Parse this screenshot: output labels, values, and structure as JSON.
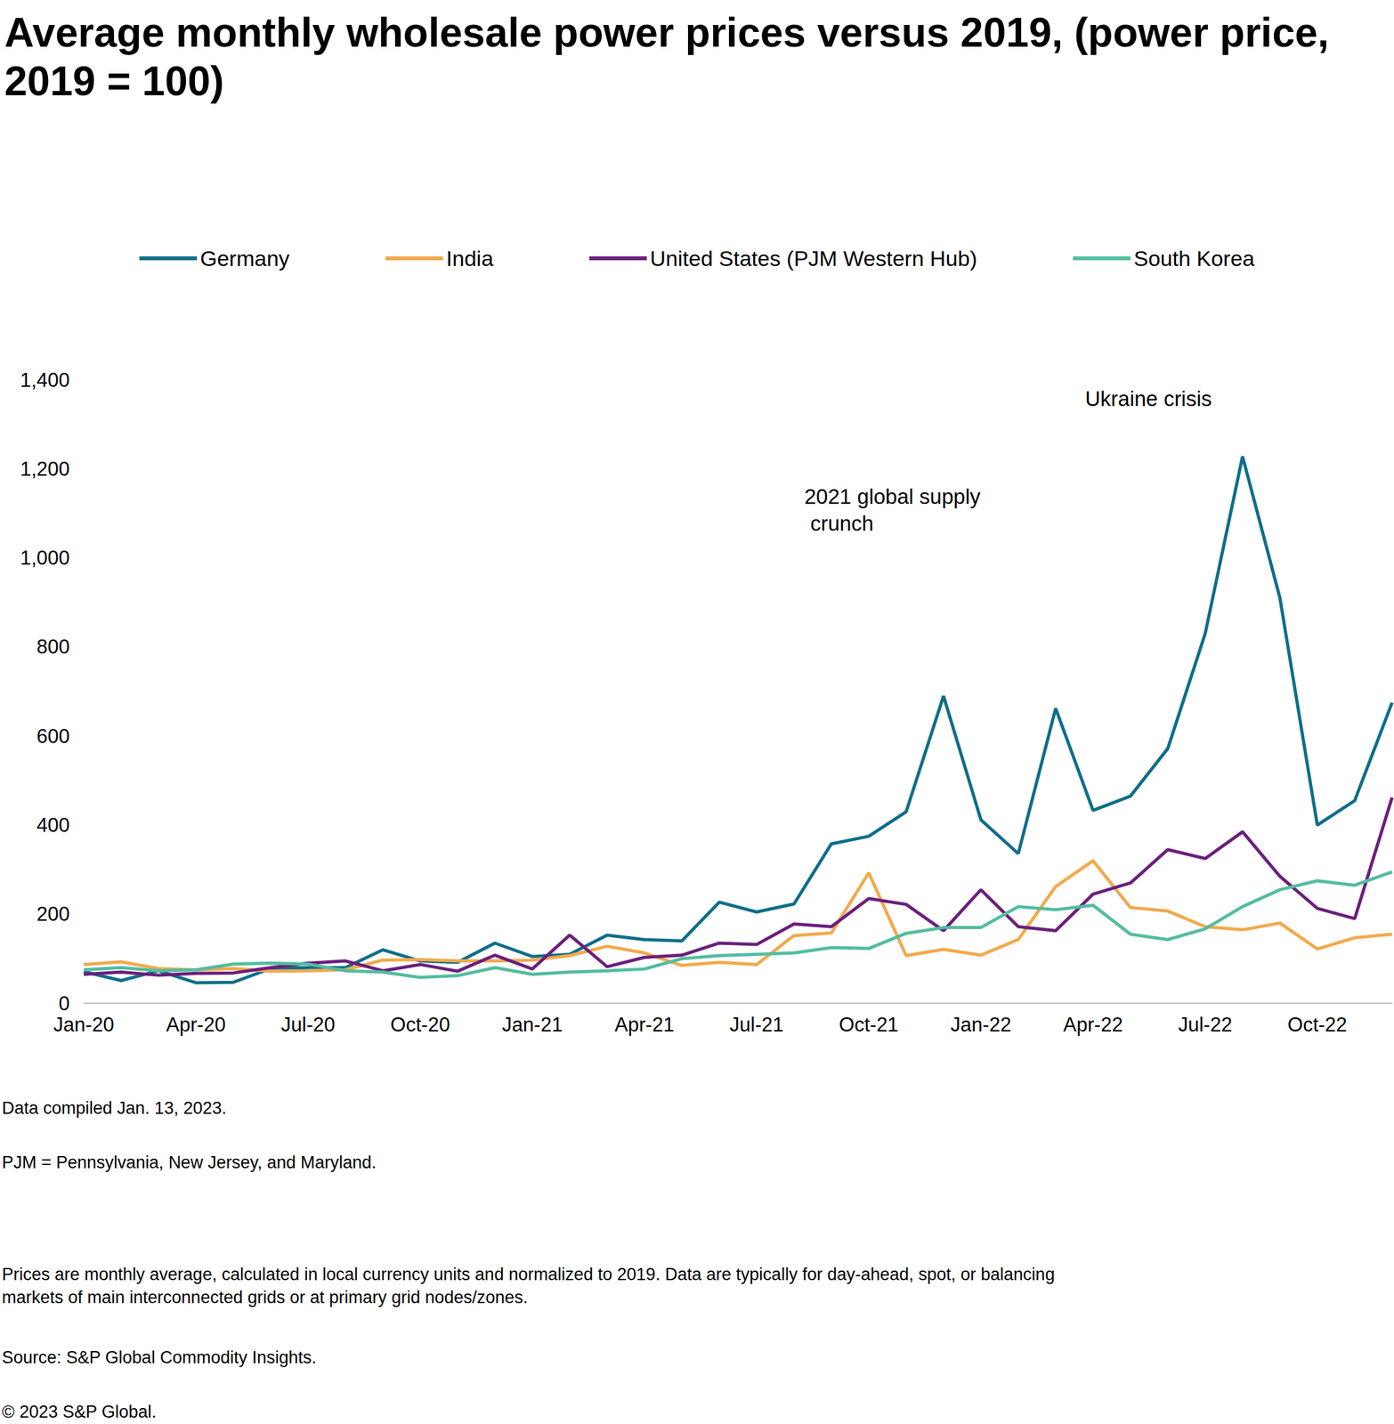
{
  "chart_data": {
    "type": "line",
    "title": "Average monthly wholesale power prices versus 2019, (power price, 2019 = 100)",
    "categories": [
      "Jan-20",
      null,
      null,
      "Apr-20",
      null,
      null,
      "Jul-20",
      null,
      null,
      "Oct-20",
      null,
      null,
      "Jan-21",
      null,
      null,
      "Apr-21",
      null,
      null,
      "Jul-21",
      null,
      null,
      "Oct-21",
      null,
      null,
      "Jan-22",
      null,
      null,
      "Apr-22",
      null,
      null,
      "Jul-22",
      null,
      null,
      "Oct-22",
      null,
      null
    ],
    "series": [
      {
        "name": "Germany",
        "color": "#0e6e8a",
        "values": [
          71,
          51,
          73,
          46,
          47,
          78,
          80,
          80,
          120,
          95,
          92,
          135,
          105,
          110,
          153,
          143,
          140,
          227,
          205,
          223,
          358,
          375,
          430,
          690,
          412,
          336,
          662,
          433,
          465,
          572,
          830,
          1228,
          910,
          400,
          455,
          675
        ]
      },
      {
        "name": "India",
        "color": "#f2a94c",
        "values": [
          87,
          93,
          78,
          75,
          78,
          72,
          73,
          75,
          97,
          98,
          95,
          95,
          97,
          107,
          128,
          113,
          85,
          92,
          87,
          152,
          158,
          293,
          107,
          121,
          108,
          143,
          262,
          320,
          215,
          207,
          172,
          165,
          180,
          122,
          147,
          155
        ]
      },
      {
        "name": "United States (PJM Western Hub)",
        "color": "#6b1f7c",
        "values": [
          65,
          70,
          63,
          67,
          68,
          80,
          90,
          95,
          73,
          87,
          72,
          108,
          77,
          153,
          82,
          103,
          108,
          135,
          132,
          178,
          172,
          235,
          222,
          163,
          255,
          172,
          163,
          245,
          270,
          345,
          325,
          385,
          285,
          213,
          190,
          462
        ]
      },
      {
        "name": "South Korea",
        "color": "#52bd9f",
        "values": [
          75,
          80,
          73,
          75,
          88,
          90,
          88,
          73,
          70,
          58,
          62,
          80,
          65,
          70,
          73,
          77,
          100,
          107,
          110,
          113,
          125,
          123,
          157,
          170,
          170,
          217,
          210,
          220,
          155,
          143,
          167,
          217,
          255,
          275,
          265,
          295
        ]
      }
    ],
    "ylim": [
      0,
      1400
    ],
    "yticks": [
      0,
      200,
      400,
      600,
      800,
      {
        "value": 1000,
        "label": "1,000"
      },
      {
        "value": 1200,
        "label": "1,200"
      },
      {
        "value": 1400,
        "label": "1,400"
      }
    ],
    "grid": false,
    "legend": "top",
    "annotations": [
      "2021 global supply crunch",
      "Ukraine crisis"
    ],
    "notes": [
      "Data compiled Jan. 13, 2023.",
      "PJM = Pennsylvania, New Jersey, and Maryland.",
      "Prices are monthly average, calculated in local currency units and normalized to 2019. Data are typically for day-ahead, spot, or balancing markets of main interconnected grids or at primary grid nodes/zones.",
      "Source: S&P Global Commodity Insights.",
      "© 2023 S&P Global."
    ]
  }
}
